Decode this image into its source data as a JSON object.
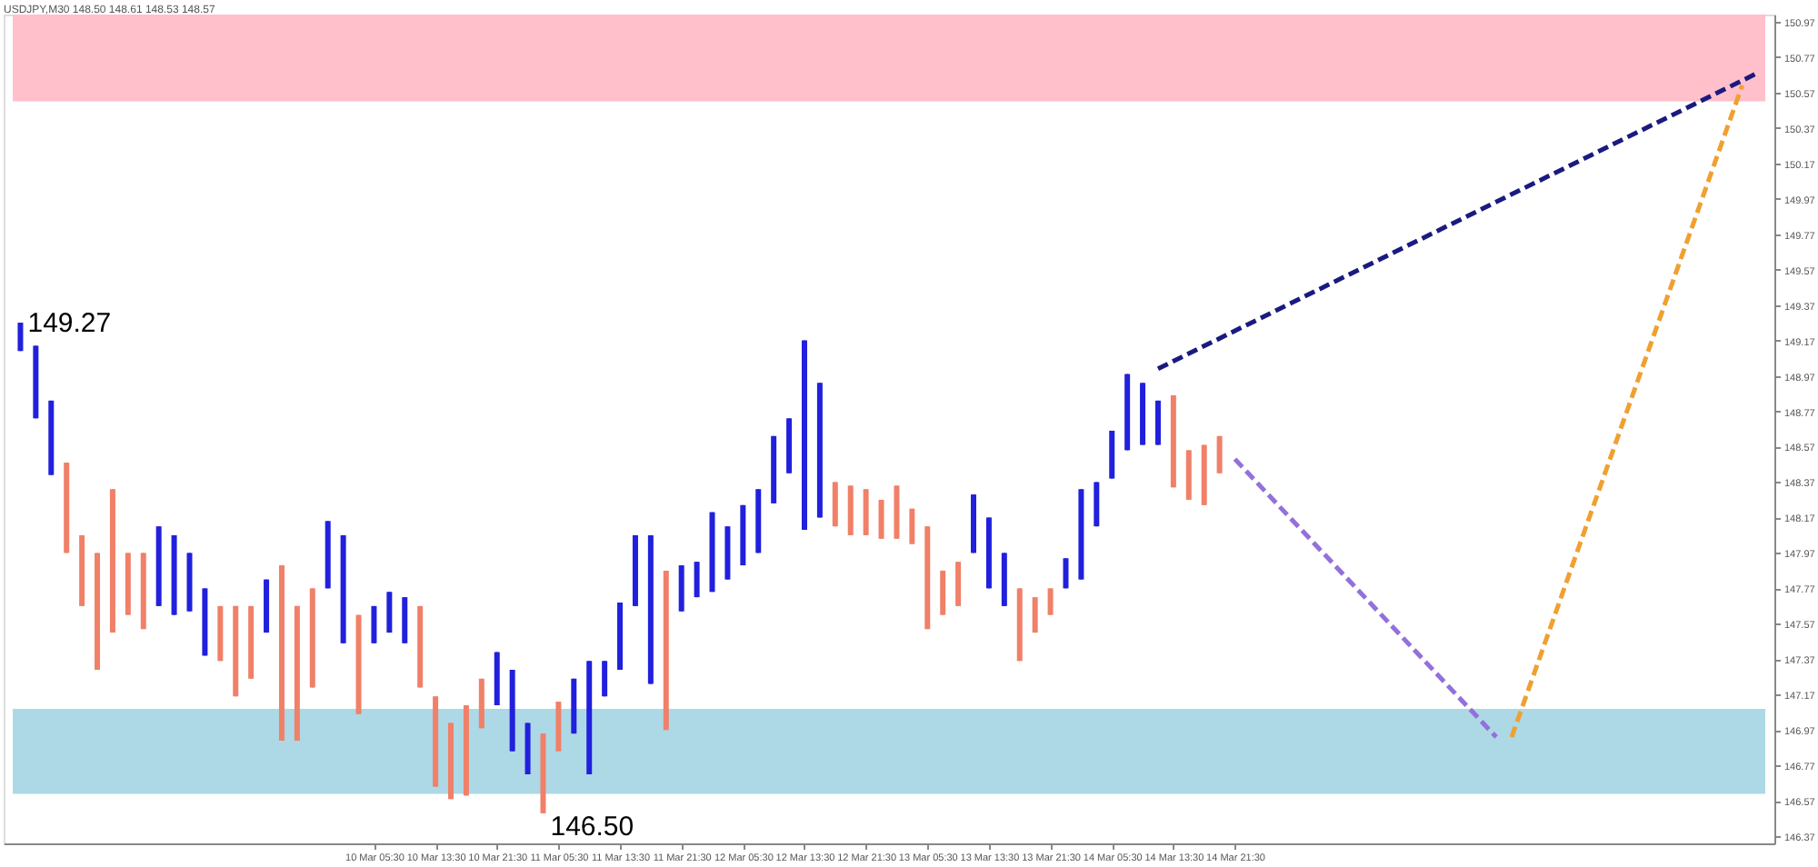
{
  "chart_data": {
    "type": "candlestick",
    "title": "USDJPY,M30 148.50 148.61 148.53 148.57",
    "categories": [
      null,
      null,
      null,
      null,
      null,
      null,
      null,
      null,
      null,
      null,
      null,
      null,
      null,
      null,
      null,
      null,
      null,
      null,
      null,
      null,
      null,
      null,
      null,
      "10 Mar 05:30",
      null,
      null,
      null,
      "10 Mar 13:30",
      null,
      null,
      null,
      "10 Mar 21:30",
      null,
      null,
      null,
      "11 Mar 05:30",
      null,
      null,
      null,
      "11 Mar 13:30",
      null,
      null,
      null,
      "11 Mar 21:30",
      null,
      null,
      null,
      "12 Mar 05:30",
      null,
      null,
      null,
      "12 Mar 13:30",
      null,
      null,
      null,
      "12 Mar 21:30",
      null,
      null,
      null,
      "13 Mar 05:30",
      null,
      null,
      null,
      "13 Mar 13:30",
      null,
      null,
      null,
      "13 Mar 21:30",
      null,
      null,
      null,
      "14 Mar 05:30",
      null,
      null,
      null,
      "14 Mar 13:30",
      null,
      null,
      null,
      "14 Mar 21:30",
      null,
      null,
      null,
      null,
      null,
      null,
      null,
      null,
      null,
      null,
      null,
      null,
      null,
      null,
      null,
      null,
      null,
      null,
      null,
      null,
      null,
      null,
      null,
      null,
      null,
      null,
      null,
      null,
      null,
      null,
      null,
      null,
      null,
      null
    ],
    "ylim": [
      146.33,
      151.01
    ],
    "yticks": [
      146.37,
      146.57,
      146.77,
      146.97,
      147.17,
      147.37,
      147.57,
      147.77,
      147.97,
      148.17,
      148.37,
      148.57,
      148.77,
      148.97,
      149.17,
      149.37,
      149.57,
      149.77,
      149.97,
      150.17,
      150.37,
      150.57,
      150.77,
      150.97
    ],
    "bands": [
      {
        "axis": "y",
        "from": 150.52,
        "to": 151.01,
        "color": "#ffc0cb"
      },
      {
        "axis": "y",
        "from": 146.61,
        "to": 147.09,
        "color": "#add8e6"
      }
    ],
    "annotations": [
      "149.27",
      "146.50"
    ],
    "ohlc": [
      [
        149.11,
        149.27,
        149.11,
        149.27
      ],
      [
        148.73,
        149.14,
        148.73,
        149.14
      ],
      [
        148.41,
        148.83,
        148.41,
        148.83
      ],
      [
        148.48,
        148.48,
        147.97,
        147.97
      ],
      [
        148.07,
        148.07,
        147.67,
        147.67
      ],
      [
        147.97,
        147.97,
        147.31,
        147.31
      ],
      [
        148.33,
        148.33,
        147.52,
        147.52
      ],
      [
        147.97,
        147.97,
        147.62,
        147.62
      ],
      [
        147.97,
        147.97,
        147.54,
        147.54
      ],
      [
        147.67,
        148.12,
        147.67,
        148.12
      ],
      [
        147.62,
        148.07,
        147.62,
        148.07
      ],
      [
        147.64,
        147.97,
        147.64,
        147.97
      ],
      [
        147.39,
        147.77,
        147.39,
        147.77
      ],
      [
        147.67,
        147.67,
        147.36,
        147.36
      ],
      [
        147.67,
        147.67,
        147.16,
        147.16
      ],
      [
        147.67,
        147.67,
        147.26,
        147.26
      ],
      [
        147.52,
        147.82,
        147.52,
        147.82
      ],
      [
        147.9,
        147.9,
        146.91,
        146.91
      ],
      [
        147.67,
        147.67,
        146.91,
        146.91
      ],
      [
        147.77,
        147.77,
        147.21,
        147.21
      ],
      [
        147.77,
        148.15,
        147.77,
        148.15
      ],
      [
        147.46,
        148.07,
        147.46,
        148.07
      ],
      [
        147.62,
        147.62,
        147.06,
        147.06
      ],
      [
        147.46,
        147.67,
        147.46,
        147.67
      ],
      [
        147.52,
        147.75,
        147.52,
        147.75
      ],
      [
        147.46,
        147.72,
        147.46,
        147.72
      ],
      [
        147.67,
        147.67,
        147.21,
        147.21
      ],
      [
        147.16,
        147.16,
        146.65,
        146.65
      ],
      [
        147.01,
        147.01,
        146.58,
        146.58
      ],
      [
        147.11,
        147.11,
        146.6,
        146.6
      ],
      [
        147.26,
        147.26,
        146.98,
        146.98
      ],
      [
        147.11,
        147.41,
        147.11,
        147.41
      ],
      [
        146.85,
        147.31,
        146.85,
        147.31
      ],
      [
        146.72,
        147.01,
        146.72,
        147.01
      ],
      [
        146.95,
        146.95,
        146.5,
        146.5
      ],
      [
        147.13,
        147.13,
        146.85,
        146.85
      ],
      [
        146.95,
        147.26,
        146.95,
        147.26
      ],
      [
        146.72,
        147.36,
        146.72,
        147.36
      ],
      [
        147.16,
        147.36,
        147.16,
        147.36
      ],
      [
        147.31,
        147.69,
        147.31,
        147.69
      ],
      [
        147.67,
        148.07,
        147.67,
        148.07
      ],
      [
        147.23,
        148.07,
        147.23,
        148.07
      ],
      [
        147.87,
        147.87,
        146.97,
        146.97
      ],
      [
        147.64,
        147.9,
        147.64,
        147.9
      ],
      [
        147.72,
        147.92,
        147.72,
        147.92
      ],
      [
        147.75,
        148.2,
        147.75,
        148.2
      ],
      [
        147.82,
        148.12,
        147.82,
        148.12
      ],
      [
        147.9,
        148.24,
        147.9,
        148.24
      ],
      [
        147.97,
        148.33,
        147.97,
        148.33
      ],
      [
        148.25,
        148.63,
        148.25,
        148.63
      ],
      [
        148.42,
        148.73,
        148.42,
        148.73
      ],
      [
        148.1,
        149.17,
        148.1,
        149.17
      ],
      [
        148.17,
        148.93,
        148.17,
        148.93
      ],
      [
        148.37,
        148.37,
        148.12,
        148.12
      ],
      [
        148.35,
        148.35,
        148.07,
        148.07
      ],
      [
        148.33,
        148.33,
        148.07,
        148.07
      ],
      [
        148.27,
        148.27,
        148.05,
        148.05
      ],
      [
        148.35,
        148.35,
        148.05,
        148.05
      ],
      [
        148.22,
        148.22,
        148.02,
        148.02
      ],
      [
        148.12,
        148.12,
        147.54,
        147.54
      ],
      [
        147.87,
        147.87,
        147.62,
        147.62
      ],
      [
        147.92,
        147.92,
        147.67,
        147.67
      ],
      [
        147.97,
        148.3,
        147.97,
        148.3
      ],
      [
        147.77,
        148.17,
        147.77,
        148.17
      ],
      [
        147.67,
        147.97,
        147.67,
        147.97
      ],
      [
        147.77,
        147.77,
        147.36,
        147.36
      ],
      [
        147.72,
        147.72,
        147.52,
        147.52
      ],
      [
        147.77,
        147.77,
        147.62,
        147.62
      ],
      [
        147.77,
        147.94,
        147.77,
        147.94
      ],
      [
        147.82,
        148.33,
        147.82,
        148.33
      ],
      [
        148.12,
        148.37,
        148.12,
        148.37
      ],
      [
        148.39,
        148.66,
        148.39,
        148.66
      ],
      [
        148.55,
        148.98,
        148.55,
        148.98
      ],
      [
        148.58,
        148.93,
        148.58,
        148.93
      ],
      [
        148.58,
        148.83,
        148.58,
        148.83
      ],
      [
        148.86,
        148.86,
        148.34,
        148.34
      ],
      [
        148.55,
        148.55,
        148.27,
        148.27
      ],
      [
        148.58,
        148.58,
        148.24,
        148.24
      ],
      [
        148.63,
        148.63,
        148.42,
        148.42
      ],
      null,
      null,
      null,
      null,
      null,
      null,
      null,
      null,
      null,
      null,
      null,
      null,
      null,
      null,
      null,
      null,
      null,
      null,
      null,
      null,
      null,
      null,
      null,
      null,
      null,
      null,
      null,
      null,
      null,
      null,
      null,
      null,
      null,
      null,
      null
    ],
    "colors": [
      "#2020dd",
      "#2020dd",
      "#2020dd",
      "#f08068",
      "#f08068",
      "#f08068",
      "#f08068",
      "#f08068",
      "#f08068",
      "#2020dd",
      "#2020dd",
      "#2020dd",
      "#2020dd",
      "#f08068",
      "#f08068",
      "#f08068",
      "#2020dd",
      "#f08068",
      "#f08068",
      "#f08068",
      "#2020dd",
      "#2020dd",
      "#f08068",
      "#2020dd",
      "#2020dd",
      "#2020dd",
      "#f08068",
      "#f08068",
      "#f08068",
      "#f08068",
      "#f08068",
      "#2020dd",
      "#2020dd",
      "#2020dd",
      "#f08068",
      "#f08068",
      "#2020dd",
      "#2020dd",
      "#2020dd",
      "#2020dd",
      "#2020dd",
      "#2020dd",
      "#f08068",
      "#2020dd",
      "#2020dd",
      "#2020dd",
      "#2020dd",
      "#2020dd",
      "#2020dd",
      "#2020dd",
      "#2020dd",
      "#2020dd",
      "#2020dd",
      "#f08068",
      "#f08068",
      "#f08068",
      "#f08068",
      "#f08068",
      "#f08068",
      "#f08068",
      "#f08068",
      "#f08068",
      "#2020dd",
      "#2020dd",
      "#2020dd",
      "#f08068",
      "#f08068",
      "#f08068",
      "#2020dd",
      "#2020dd",
      "#2020dd",
      "#2020dd",
      "#2020dd",
      "#2020dd",
      "#2020dd",
      "#f08068",
      "#f08068",
      "#f08068",
      "#f08068",
      null,
      null,
      null,
      null,
      null,
      null,
      null,
      null,
      null,
      null,
      null,
      null,
      null,
      null,
      null,
      null,
      null,
      null,
      null,
      null,
      null,
      null,
      null,
      null,
      null,
      null,
      null,
      null,
      null,
      null,
      null,
      null,
      null,
      null,
      null
    ],
    "series": [
      {
        "type": "line",
        "color": "#1a1a80",
        "line_style": "dashed",
        "values": [
          null,
          null,
          null,
          null,
          null,
          null,
          null,
          null,
          null,
          null,
          null,
          null,
          null,
          null,
          null,
          null,
          null,
          null,
          null,
          null,
          null,
          null,
          null,
          null,
          null,
          null,
          null,
          null,
          null,
          null,
          null,
          null,
          null,
          null,
          null,
          null,
          null,
          null,
          null,
          null,
          null,
          null,
          null,
          null,
          null,
          null,
          null,
          null,
          null,
          null,
          null,
          null,
          null,
          null,
          null,
          null,
          null,
          null,
          null,
          null,
          null,
          null,
          null,
          null,
          null,
          null,
          null,
          null,
          null,
          null,
          null,
          null,
          null,
          null,
          149.01,
          null,
          null,
          null,
          null,
          null,
          null,
          null,
          null,
          null,
          null,
          null,
          null,
          null,
          null,
          null,
          null,
          null,
          null,
          null,
          null,
          null,
          null,
          null,
          null,
          null,
          null,
          null,
          null,
          null,
          null,
          null,
          null,
          null,
          null,
          null,
          null,
          null,
          null,
          150.68
        ]
      },
      {
        "type": "line",
        "color": "#9370db",
        "line_style": "dashed",
        "values": [
          null,
          null,
          null,
          null,
          null,
          null,
          null,
          null,
          null,
          null,
          null,
          null,
          null,
          null,
          null,
          null,
          null,
          null,
          null,
          null,
          null,
          null,
          null,
          null,
          null,
          null,
          null,
          null,
          null,
          null,
          null,
          null,
          null,
          null,
          null,
          null,
          null,
          null,
          null,
          null,
          null,
          null,
          null,
          null,
          null,
          null,
          null,
          null,
          null,
          null,
          null,
          null,
          null,
          null,
          null,
          null,
          null,
          null,
          null,
          null,
          null,
          null,
          null,
          null,
          null,
          null,
          null,
          null,
          null,
          null,
          null,
          null,
          null,
          null,
          null,
          null,
          null,
          null,
          null,
          148.5,
          null,
          null,
          null,
          null,
          null,
          null,
          null,
          null,
          null,
          null,
          null,
          null,
          null,
          null,
          null,
          null,
          146.93,
          null,
          null,
          null,
          null,
          null,
          null,
          null,
          null,
          null,
          null,
          null,
          null,
          null,
          null,
          null,
          null,
          null
        ]
      },
      {
        "type": "line",
        "color": "#f0a030",
        "line_style": "dashed",
        "values": [
          null,
          null,
          null,
          null,
          null,
          null,
          null,
          null,
          null,
          null,
          null,
          null,
          null,
          null,
          null,
          null,
          null,
          null,
          null,
          null,
          null,
          null,
          null,
          null,
          null,
          null,
          null,
          null,
          null,
          null,
          null,
          null,
          null,
          null,
          null,
          null,
          null,
          null,
          null,
          null,
          null,
          null,
          null,
          null,
          null,
          null,
          null,
          null,
          null,
          null,
          null,
          null,
          null,
          null,
          null,
          null,
          null,
          null,
          null,
          null,
          null,
          null,
          null,
          null,
          null,
          null,
          null,
          null,
          null,
          null,
          null,
          null,
          null,
          null,
          null,
          null,
          null,
          null,
          null,
          null,
          null,
          null,
          null,
          null,
          null,
          null,
          null,
          null,
          null,
          null,
          null,
          null,
          null,
          null,
          null,
          null,
          null,
          146.93,
          null,
          null,
          null,
          null,
          null,
          null,
          null,
          null,
          null,
          null,
          null,
          null,
          null,
          null,
          150.61,
          null
        ]
      }
    ]
  }
}
